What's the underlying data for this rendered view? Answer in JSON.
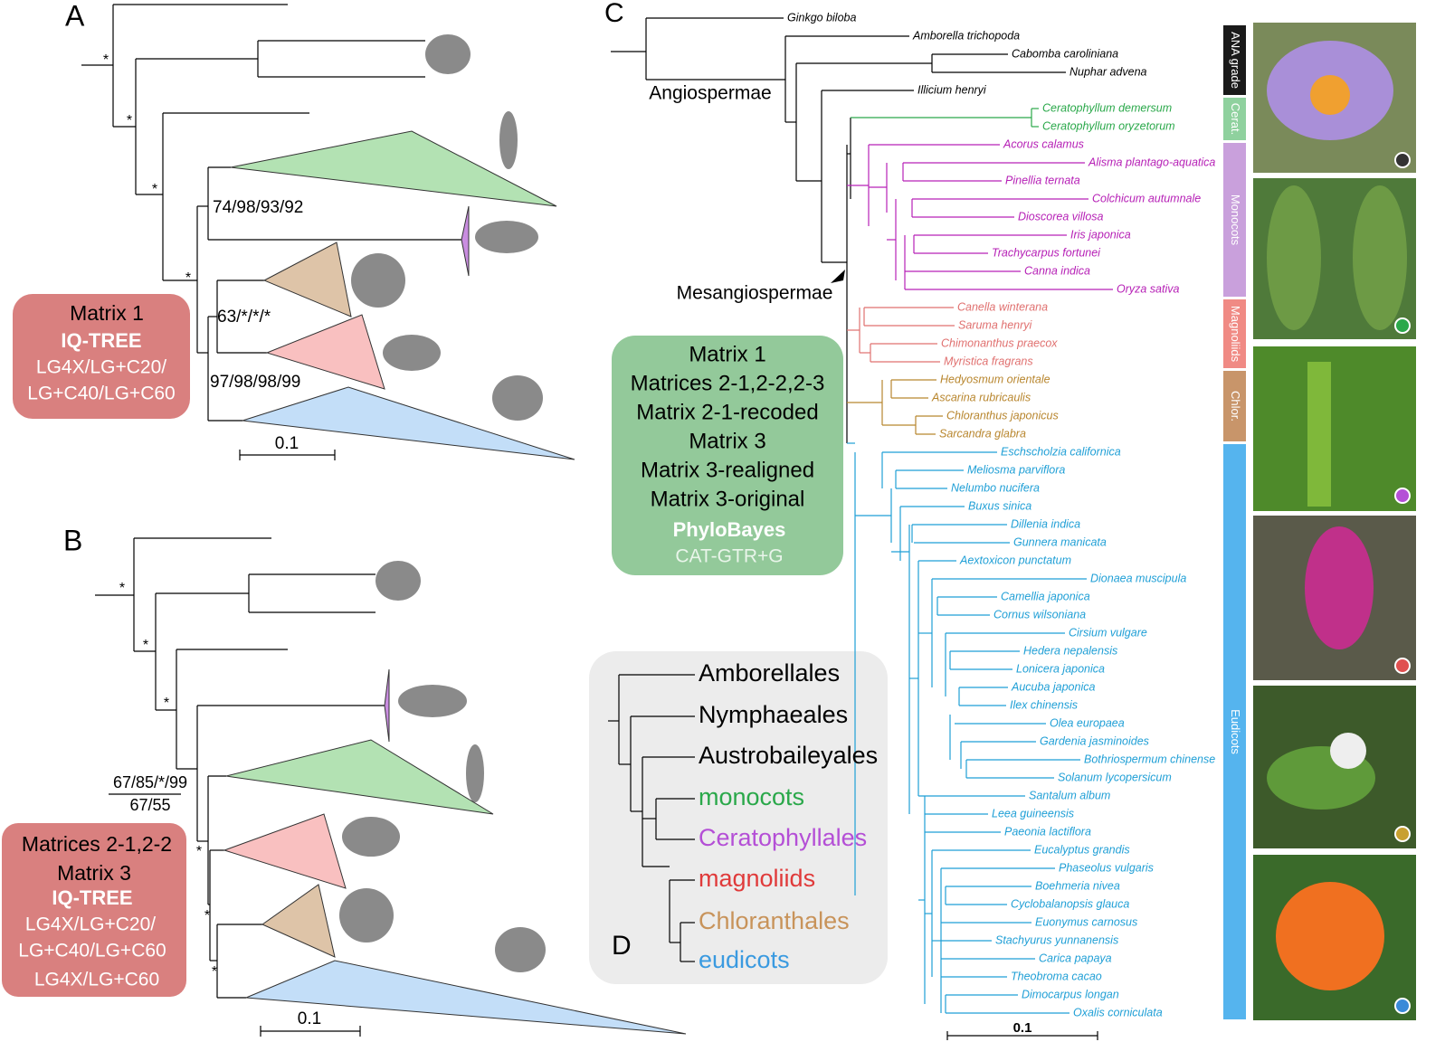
{
  "panel_a": {
    "label": "A",
    "supports": [
      "*",
      "*",
      "*",
      "*",
      "74/98/93/92",
      "63/*/*/*",
      "97/98/98/99"
    ],
    "box": [
      "Matrix 1",
      "IQ-TREE",
      "LG4X/LG+C20/",
      "LG+C40/LG+C60"
    ],
    "scale": "0.1"
  },
  "panel_b": {
    "label": "B",
    "supports": [
      "*",
      "*",
      "*",
      "67/85/*/99",
      "67/55",
      "*",
      "*",
      "*"
    ],
    "box": [
      "Matrices 2-1,2-2",
      "Matrix 3",
      "IQ-TREE",
      "LG4X/LG+C20/",
      "LG+C40/LG+C60",
      "LG4X/LG+C60"
    ],
    "scale": "0.1"
  },
  "panel_c": {
    "label": "C",
    "angiospermae": "Angiospermae",
    "mesangiospermae": "Mesangiospermae",
    "scale": "0.1",
    "box": [
      "Matrix 1",
      "Matrices 2-1,2-2,2-3",
      "Matrix 2-1-recoded",
      "Matrix 3",
      "Matrix 3-realigned",
      "Matrix 3-original",
      "PhyloBayes",
      "CAT-GTR+G"
    ],
    "taxa": [
      {
        "name": "Ginkgo biloba",
        "color": "#000000"
      },
      {
        "name": "Amborella trichopoda",
        "color": "#000000"
      },
      {
        "name": "Cabomba caroliniana",
        "color": "#000000"
      },
      {
        "name": "Nuphar advena",
        "color": "#000000"
      },
      {
        "name": "Illicium henryi",
        "color": "#000000"
      },
      {
        "name": "Ceratophyllum demersum",
        "color": "#2aa84a"
      },
      {
        "name": "Ceratophyllum oryzetorum",
        "color": "#2aa84a"
      },
      {
        "name": "Acorus calamus",
        "color": "#b620b6"
      },
      {
        "name": "Alisma plantago-aquatica",
        "color": "#b620b6"
      },
      {
        "name": "Pinellia ternata",
        "color": "#b620b6"
      },
      {
        "name": "Colchicum autumnale",
        "color": "#b620b6"
      },
      {
        "name": "Dioscorea villosa",
        "color": "#b620b6"
      },
      {
        "name": "Iris japonica",
        "color": "#b620b6"
      },
      {
        "name": "Trachycarpus fortunei",
        "color": "#b620b6"
      },
      {
        "name": "Canna indica",
        "color": "#b620b6"
      },
      {
        "name": "Oryza sativa",
        "color": "#b620b6"
      },
      {
        "name": "Canella winterana",
        "color": "#e0706f"
      },
      {
        "name": "Saruma henryi",
        "color": "#e0706f"
      },
      {
        "name": "Chimonanthus praecox",
        "color": "#e0706f"
      },
      {
        "name": "Myristica fragrans",
        "color": "#e0706f"
      },
      {
        "name": "Hedyosmum orientale",
        "color": "#b8862e"
      },
      {
        "name": "Ascarina rubricaulis",
        "color": "#b8862e"
      },
      {
        "name": "Chloranthus japonicus",
        "color": "#b8862e"
      },
      {
        "name": "Sarcandra glabra",
        "color": "#b8862e"
      },
      {
        "name": "Eschscholzia californica",
        "color": "#1f9fd6"
      },
      {
        "name": "Meliosma parviflora",
        "color": "#1f9fd6"
      },
      {
        "name": "Nelumbo nucifera",
        "color": "#1f9fd6"
      },
      {
        "name": "Buxus sinica",
        "color": "#1f9fd6"
      },
      {
        "name": "Dillenia indica",
        "color": "#1f9fd6"
      },
      {
        "name": "Gunnera manicata",
        "color": "#1f9fd6"
      },
      {
        "name": "Aextoxicon punctatum",
        "color": "#1f9fd6"
      },
      {
        "name": "Dionaea muscipula",
        "color": "#1f9fd6"
      },
      {
        "name": "Camellia japonica",
        "color": "#1f9fd6"
      },
      {
        "name": "Cornus wilsoniana",
        "color": "#1f9fd6"
      },
      {
        "name": "Cirsium vulgare",
        "color": "#1f9fd6"
      },
      {
        "name": "Hedera nepalensis",
        "color": "#1f9fd6"
      },
      {
        "name": "Lonicera japonica",
        "color": "#1f9fd6"
      },
      {
        "name": "Aucuba japonica",
        "color": "#1f9fd6"
      },
      {
        "name": "Ilex chinensis",
        "color": "#1f9fd6"
      },
      {
        "name": "Olea europaea",
        "color": "#1f9fd6"
      },
      {
        "name": "Gardenia jasminoides",
        "color": "#1f9fd6"
      },
      {
        "name": "Bothriospermum chinense",
        "color": "#1f9fd6"
      },
      {
        "name": "Solanum lycopersicum",
        "color": "#1f9fd6"
      },
      {
        "name": "Santalum album",
        "color": "#1f9fd6"
      },
      {
        "name": "Leea guineensis",
        "color": "#1f9fd6"
      },
      {
        "name": "Paeonia lactiflora",
        "color": "#1f9fd6"
      },
      {
        "name": "Eucalyptus grandis",
        "color": "#1f9fd6"
      },
      {
        "name": "Phaseolus vulgaris",
        "color": "#1f9fd6"
      },
      {
        "name": "Boehmeria nivea",
        "color": "#1f9fd6"
      },
      {
        "name": "Cyclobalanopsis glauca",
        "color": "#1f9fd6"
      },
      {
        "name": "Euonymus carnosus",
        "color": "#1f9fd6"
      },
      {
        "name": "Stachyurus yunnanensis",
        "color": "#1f9fd6"
      },
      {
        "name": "Carica papaya",
        "color": "#1f9fd6"
      },
      {
        "name": "Theobroma cacao",
        "color": "#1f9fd6"
      },
      {
        "name": "Dimocarpus longan",
        "color": "#1f9fd6"
      },
      {
        "name": "Oxalis corniculata",
        "color": "#1f9fd6"
      }
    ],
    "clades": [
      {
        "name": "ANA grade",
        "color": "#1a1a1a"
      },
      {
        "name": "Cerat.",
        "color": "#8fd19e"
      },
      {
        "name": "Monocots",
        "color": "#c9a0dc"
      },
      {
        "name": "Magnoliids",
        "color": "#f08a84"
      },
      {
        "name": "Chlor.",
        "color": "#c8956a"
      },
      {
        "name": "Eudicots",
        "color": "#55b4ee"
      }
    ]
  },
  "panel_d": {
    "label": "D",
    "orders": [
      {
        "name": "Amborellales",
        "color": "#000000"
      },
      {
        "name": "Nymphaeales",
        "color": "#000000"
      },
      {
        "name": "Austrobaileyales",
        "color": "#000000"
      },
      {
        "name": "monocots",
        "color": "#2aa84a"
      },
      {
        "name": "Ceratophyllales",
        "color": "#b44fd6"
      },
      {
        "name": "magnoliids",
        "color": "#e03a3a"
      },
      {
        "name": "Chloranthales",
        "color": "#c8935a"
      },
      {
        "name": "eudicots",
        "color": "#3a9ae0"
      }
    ]
  }
}
